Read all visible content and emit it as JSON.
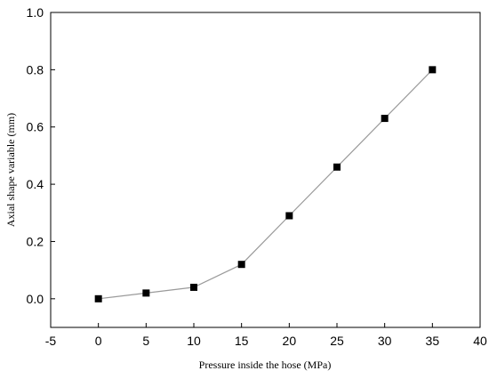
{
  "chart_data": {
    "type": "line",
    "title": "",
    "xlabel": "Pressure inside the hose  (MPa)",
    "ylabel": "Axial shape variable  (mm)",
    "xlim": [
      -5,
      40
    ],
    "ylim": [
      -0.1,
      1.0
    ],
    "xticks": [
      "-5",
      "0",
      "5",
      "10",
      "15",
      "20",
      "25",
      "30",
      "35",
      "40"
    ],
    "yticks": [
      "0.0",
      "0.2",
      "0.4",
      "0.6",
      "0.8",
      "1.0"
    ],
    "grid": false,
    "legend": "none",
    "series": [
      {
        "x": [
          0,
          5,
          10,
          15,
          20,
          25,
          30,
          35
        ],
        "y": [
          0.0,
          0.02,
          0.04,
          0.12,
          0.29,
          0.46,
          0.63,
          0.8
        ],
        "marker": "square",
        "color": "#000000",
        "line_color": "#9a9a9a"
      }
    ]
  }
}
